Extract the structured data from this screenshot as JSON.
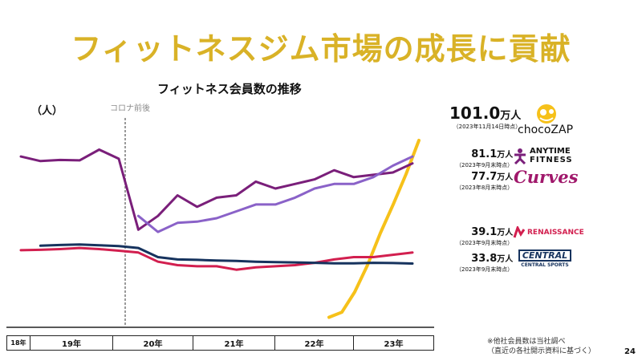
{
  "slide": {
    "title": "フィットネスジム市場の成長に貢献",
    "page_number": "24",
    "footnote_line1": "※他社会員数は当社調べ",
    "footnote_line2": "（直近の各社開示資料に基づく）"
  },
  "chart_data": {
    "type": "line",
    "title": "フィットネス会員数の推移",
    "ylabel": "（人）",
    "annotation": "コロナ前後",
    "x_periods": [
      "18年",
      "19年",
      "20年",
      "21年",
      "22年",
      "23年"
    ],
    "series": [
      {
        "name": "chocoZAP",
        "color": "#f6c11a",
        "start_index": 0,
        "values": [
          5,
          8,
          20,
          36,
          55,
          72,
          90,
          110
        ]
      },
      {
        "name": "ANYTIME FITNESS",
        "color": "#7a1f7a",
        "start_index": 0,
        "values": [
          74,
          72,
          72.5,
          72.3,
          77,
          73,
          42,
          48,
          57,
          52,
          56,
          57,
          63,
          60,
          62,
          64,
          68,
          65,
          66,
          67,
          71
        ]
      },
      {
        "name": "Curves",
        "color": "#8a62c8",
        "start_index": 6,
        "values": [
          48,
          41,
          45,
          45.5,
          47,
          50,
          53,
          53,
          56,
          60,
          62,
          62,
          65,
          70,
          74
        ]
      },
      {
        "name": "RENAISSANCE",
        "color": "#d21f4f",
        "start_index": 0,
        "values": [
          33,
          33.2,
          33.5,
          34,
          33.5,
          32.8,
          32,
          28,
          26.5,
          26,
          26,
          24.5,
          25.5,
          26,
          26.5,
          27.5,
          29,
          30,
          30,
          31,
          32
        ]
      },
      {
        "name": "CENTRAL SPORTS",
        "color": "#16335e",
        "start_index": 1,
        "values": [
          35,
          35.3,
          35.5,
          35.2,
          34.8,
          34,
          30,
          29,
          28.8,
          28.5,
          28.3,
          28,
          27.8,
          27.7,
          27.5,
          27.3,
          27.3,
          27.5,
          27.4,
          27.2
        ]
      }
    ],
    "legend": [
      {
        "value": "101.0",
        "unit": "万人",
        "note": "（2023年11月14日時点）",
        "brand": "chocoZAP"
      },
      {
        "value": "81.1",
        "unit": "万人",
        "note": "（2023年9月末時点）",
        "brand": "ANYTIME FITNESS"
      },
      {
        "value": "77.7",
        "unit": "万人",
        "note": "（2023年8月末時点）",
        "brand": "Curves"
      },
      {
        "value": "39.1",
        "unit": "万人",
        "note": "（2023年9月末時点）",
        "brand": "RENAISSANCE"
      },
      {
        "value": "33.8",
        "unit": "万人",
        "note": "（2023年9月末時点）",
        "brand": "CENTRAL SPORTS"
      }
    ]
  },
  "logos": {
    "choco_wordmark": "chocoZAP",
    "anytime_line1": "ANYTIME",
    "anytime_line2": "FITNESS",
    "curves_wordmark": "Curves",
    "renaissance_wordmark": "RENAISSANCE",
    "central_line1": "CENTRAL",
    "central_line2": "CENTRAL SPORTS"
  }
}
